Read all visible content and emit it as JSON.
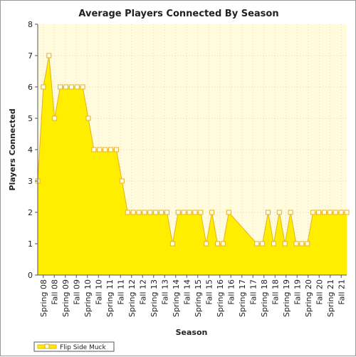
{
  "chart_data": {
    "type": "area",
    "title": "Average Players Connected By Season",
    "xlabel": "Season",
    "ylabel": "Players Connected",
    "ylim": [
      0,
      8
    ],
    "yticks": [
      0,
      1,
      2,
      3,
      4,
      5,
      6,
      7,
      8
    ],
    "grid": true,
    "legend_position": "bottom-left",
    "colors": {
      "fill": "#ffee00",
      "line": "#e8b020",
      "plot_bg": "#fffbdc",
      "marker_fill": "#ffffe8"
    },
    "category_labels": [
      "Spring 08",
      "Fall 08",
      "Spring 09",
      "Fall 09",
      "Spring 10",
      "Fall 10",
      "Spring 11",
      "Fall 11",
      "Spring 12",
      "Fall 12",
      "Spring 13",
      "Fall 13",
      "Spring 14",
      "Fall 14",
      "Spring 15",
      "Fall 15",
      "Spring 16",
      "Fall 16",
      "Spring 17",
      "Fall 17",
      "Spring 18",
      "Fall 18",
      "Spring 19",
      "Fall 19",
      "Spring 20",
      "Fall 20",
      "Spring 21",
      "Fall 21"
    ],
    "series": [
      {
        "name": "Flip Side Muck",
        "values": [
          3,
          6,
          7,
          5,
          6,
          6,
          6,
          6,
          6,
          5,
          4,
          4,
          4,
          4,
          4,
          3,
          2,
          2,
          2,
          2,
          2,
          2,
          2,
          2,
          1,
          2,
          2,
          2,
          2,
          2,
          1,
          2,
          1,
          1,
          2,
          null,
          null,
          null,
          null,
          1,
          1,
          2,
          1,
          2,
          1,
          2,
          1,
          1,
          1,
          2,
          2,
          2,
          2,
          2,
          2,
          2
        ]
      }
    ]
  }
}
